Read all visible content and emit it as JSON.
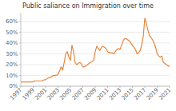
{
  "chart_data": {
    "type": "line",
    "title": "Public saliance on Immigration over time",
    "color": "#E8853D",
    "grid": "y",
    "xlim": [
      1997,
      2021
    ],
    "xticks": [
      1997,
      1999,
      2001,
      2003,
      2005,
      2007,
      2009,
      2011,
      2013,
      2015,
      2017,
      2019,
      2021
    ],
    "ylim": [
      0,
      0.68
    ],
    "yticks": [
      {
        "value": 0.0,
        "label": "0%"
      },
      {
        "value": 0.1,
        "label": "10%"
      },
      {
        "value": 0.2,
        "label": "20%"
      },
      {
        "value": 0.3,
        "label": "30%"
      },
      {
        "value": 0.4,
        "label": "40%"
      },
      {
        "value": 0.5,
        "label": "50%"
      },
      {
        "value": 0.6,
        "label": "60%"
      }
    ],
    "x": [
      1997.0,
      1997.25,
      1997.5,
      1997.75,
      1998.0,
      1998.25,
      1998.5,
      1998.75,
      1999.0,
      1999.25,
      1999.5,
      1999.75,
      2000.0,
      2000.25,
      2000.5,
      2000.75,
      2001.0,
      2001.25,
      2001.5,
      2001.75,
      2002.0,
      2002.25,
      2002.5,
      2002.75,
      2003.0,
      2003.25,
      2003.5,
      2003.75,
      2004.0,
      2004.25,
      2004.5,
      2004.75,
      2005.0,
      2005.25,
      2005.5,
      2005.75,
      2006.0,
      2006.25,
      2006.5,
      2006.75,
      2007.0,
      2007.25,
      2007.5,
      2007.75,
      2008.0,
      2008.25,
      2008.5,
      2008.75,
      2009.0,
      2009.25,
      2009.5,
      2009.75,
      2010.0,
      2010.25,
      2010.5,
      2010.75,
      2011.0,
      2011.25,
      2011.5,
      2011.75,
      2012.0,
      2012.25,
      2012.5,
      2012.75,
      2013.0,
      2013.25,
      2013.5,
      2013.75,
      2014.0,
      2014.25,
      2014.5,
      2014.75,
      2015.0,
      2015.25,
      2015.5,
      2015.75,
      2016.0,
      2016.25,
      2016.5,
      2016.75,
      2017.0,
      2017.25,
      2017.5,
      2017.75,
      2018.0,
      2018.25,
      2018.5,
      2018.75,
      2019.0,
      2019.25,
      2019.5,
      2019.75,
      2020.0,
      2020.25,
      2020.5,
      2020.75,
      2021.0
    ],
    "values": [
      0.04,
      0.04,
      0.04,
      0.04,
      0.04,
      0.04,
      0.04,
      0.04,
      0.04,
      0.05,
      0.05,
      0.05,
      0.05,
      0.05,
      0.05,
      0.06,
      0.06,
      0.07,
      0.08,
      0.08,
      0.09,
      0.1,
      0.1,
      0.1,
      0.11,
      0.14,
      0.18,
      0.15,
      0.22,
      0.3,
      0.32,
      0.27,
      0.24,
      0.38,
      0.32,
      0.22,
      0.2,
      0.21,
      0.22,
      0.21,
      0.18,
      0.18,
      0.19,
      0.2,
      0.21,
      0.22,
      0.23,
      0.24,
      0.32,
      0.37,
      0.35,
      0.33,
      0.36,
      0.37,
      0.36,
      0.35,
      0.32,
      0.31,
      0.31,
      0.31,
      0.3,
      0.32,
      0.34,
      0.35,
      0.34,
      0.38,
      0.42,
      0.44,
      0.44,
      0.43,
      0.42,
      0.4,
      0.38,
      0.36,
      0.34,
      0.3,
      0.31,
      0.33,
      0.38,
      0.46,
      0.63,
      0.58,
      0.52,
      0.47,
      0.45,
      0.43,
      0.4,
      0.36,
      0.3,
      0.28,
      0.27,
      0.28,
      0.22,
      0.21,
      0.2,
      0.19,
      0.18
    ]
  }
}
